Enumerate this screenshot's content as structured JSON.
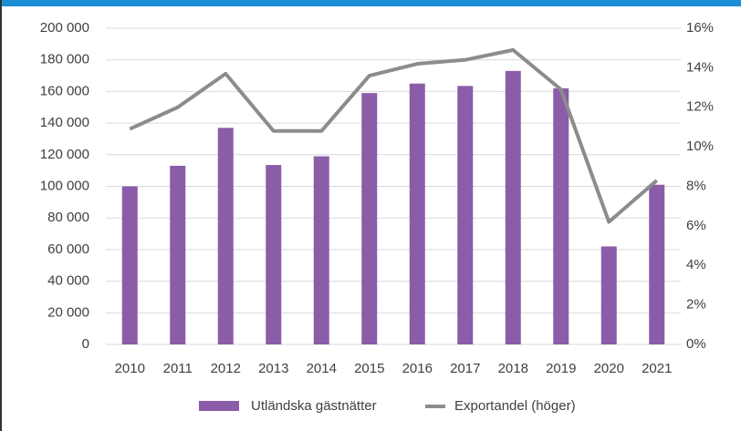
{
  "chart_data": {
    "type": "bar_line",
    "categories": [
      "2010",
      "2011",
      "2012",
      "2013",
      "2014",
      "2015",
      "2016",
      "2017",
      "2018",
      "2019",
      "2020",
      "2021"
    ],
    "series": [
      {
        "name": "Utländska gästnätter",
        "color": "#8b5ca8",
        "type": "bar",
        "values": [
          100000,
          113000,
          137000,
          113500,
          119000,
          159000,
          165000,
          163500,
          173000,
          162000,
          62000,
          101000
        ]
      },
      {
        "name": "Exportandel (höger)",
        "color": "#8c8c8c",
        "type": "line",
        "axis": "y2",
        "values": [
          10.9,
          12.0,
          13.7,
          10.8,
          10.8,
          13.6,
          14.2,
          14.4,
          14.9,
          12.9,
          6.2,
          8.3
        ]
      }
    ],
    "ylim": [
      0,
      200000
    ],
    "yticks": [
      0,
      {
        "value": 20000,
        "label": "20 000"
      },
      {
        "value": 40000,
        "label": "40 000"
      },
      {
        "value": 60000,
        "label": "60 000"
      },
      {
        "value": 80000,
        "label": "80 000"
      },
      {
        "value": 100000,
        "label": "100 000"
      },
      {
        "value": 120000,
        "label": "120 000"
      },
      {
        "value": 140000,
        "label": "140 000"
      },
      {
        "value": 160000,
        "label": "160 000"
      },
      {
        "value": 180000,
        "label": "180 000"
      },
      {
        "value": 200000,
        "label": "200 000"
      }
    ],
    "y2lim": [
      0,
      16
    ],
    "y2ticks": [
      {
        "value": 0,
        "label": "0%"
      },
      {
        "value": 2,
        "label": "2%"
      },
      {
        "value": 4,
        "label": "4%"
      },
      {
        "value": 6,
        "label": "6%"
      },
      {
        "value": 8,
        "label": "8%"
      },
      {
        "value": 10,
        "label": "10%"
      },
      {
        "value": 12,
        "label": "12%"
      },
      {
        "value": 14,
        "label": "14%"
      },
      {
        "value": 16,
        "label": "16%"
      }
    ],
    "grid": true,
    "legend": "bottom"
  }
}
